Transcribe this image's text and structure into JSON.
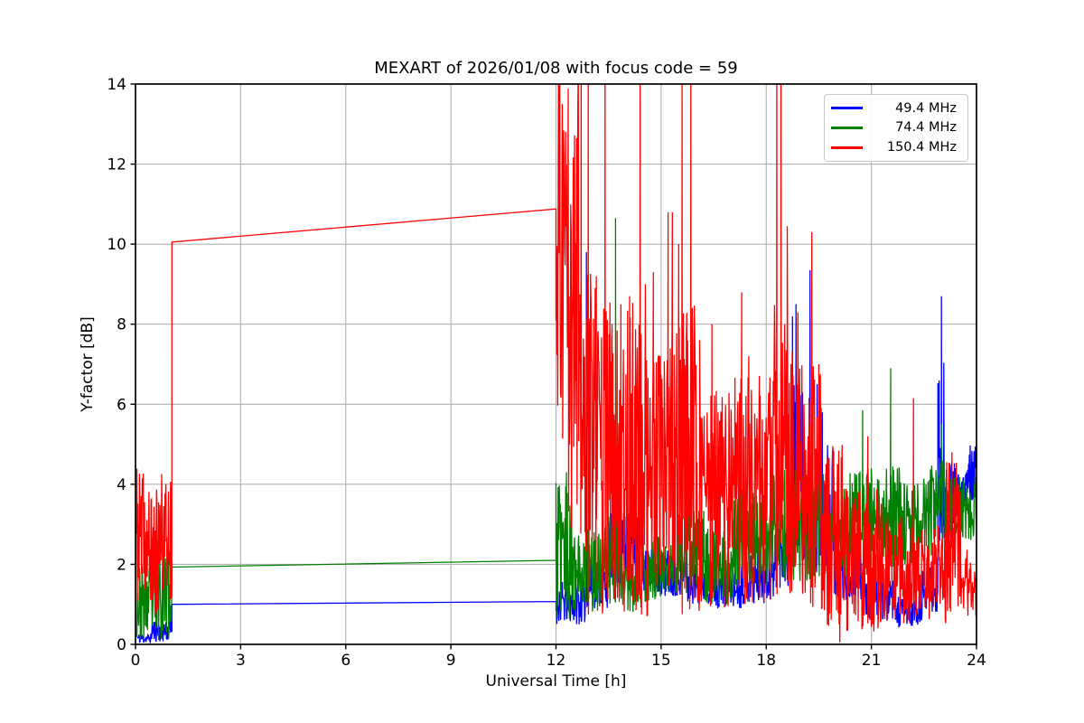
{
  "colors": {
    "background": "#ffffff",
    "grid": "#b0b0b0",
    "axes": "#000000"
  },
  "chart_data": {
    "type": "line",
    "title": "MEXART of 2026/01/08 with focus code = 59",
    "xlabel": "Universal Time [h]",
    "ylabel": "Y-factor [dB]",
    "xlim": [
      0,
      24
    ],
    "ylim": [
      0,
      14
    ],
    "xticks": [
      0,
      3,
      6,
      9,
      12,
      15,
      18,
      21,
      24
    ],
    "yticks": [
      0,
      2,
      4,
      6,
      8,
      10,
      12,
      14
    ],
    "grid": true,
    "legend_position": "upper right",
    "sample_step_hours": 0.012,
    "series": [
      {
        "name": "49.4 MHz",
        "color": "#0000ff",
        "seed": 11,
        "segments": [
          {
            "type": "noise",
            "x0": 0.05,
            "x1": 0.45,
            "lo": 0.02,
            "hi": 0.28
          },
          {
            "type": "noise",
            "x0": 0.45,
            "x1": 1.04,
            "lo": 0.05,
            "hi": 0.65
          },
          {
            "type": "line",
            "points": [
              [
                1.04,
                1.0
              ],
              [
                12.0,
                1.07
              ]
            ]
          },
          {
            "type": "noise",
            "x0": 12.0,
            "x1": 12.85,
            "lo": 0.5,
            "hi": 1.6
          },
          {
            "type": "noise",
            "x0": 12.85,
            "x1": 13.5,
            "lo": 0.9,
            "hi": 2.1
          },
          {
            "type": "noise",
            "x0": 13.5,
            "x1": 14.5,
            "lo": 1.4,
            "hi": 3.3
          },
          {
            "type": "noise",
            "x0": 14.5,
            "x1": 15.75,
            "lo": 1.2,
            "hi": 2.4
          },
          {
            "type": "noise",
            "x0": 15.75,
            "x1": 16.45,
            "lo": 1.0,
            "hi": 2.1
          },
          {
            "type": "noise",
            "x0": 16.45,
            "x1": 17.3,
            "lo": 0.9,
            "hi": 1.9
          },
          {
            "type": "noise",
            "x0": 17.3,
            "x1": 18.25,
            "lo": 1.0,
            "hi": 2.4
          },
          {
            "type": "noise",
            "x0": 18.25,
            "x1": 18.7,
            "lo": 1.4,
            "hi": 3.2
          },
          {
            "type": "noise",
            "x0": 18.7,
            "x1": 19.05,
            "lo": 2.0,
            "hi": 6.5,
            "p": 1.4
          },
          {
            "type": "noise",
            "x0": 19.05,
            "x1": 19.4,
            "lo": 2.0,
            "hi": 5.0,
            "p": 1.4
          },
          {
            "type": "noise",
            "x0": 19.4,
            "x1": 19.95,
            "lo": 1.8,
            "hi": 5.0,
            "p": 1.5
          },
          {
            "type": "noise",
            "x0": 19.95,
            "x1": 20.85,
            "lo": 1.1,
            "hi": 2.4
          },
          {
            "type": "noise",
            "x0": 20.85,
            "x1": 21.65,
            "lo": 0.6,
            "hi": 1.6
          },
          {
            "type": "noise",
            "x0": 21.65,
            "x1": 22.45,
            "lo": 0.35,
            "hi": 1.2
          },
          {
            "type": "noise",
            "x0": 22.45,
            "x1": 22.9,
            "lo": 0.8,
            "hi": 2.0
          },
          {
            "type": "noise",
            "x0": 22.9,
            "x1": 23.08,
            "lo": 2.0,
            "hi": 7.5,
            "p": 0.9
          },
          {
            "type": "noise",
            "x0": 23.08,
            "x1": 23.4,
            "lo": 2.6,
            "hi": 4.6
          },
          {
            "type": "noise",
            "x0": 23.4,
            "x1": 23.7,
            "lo": 3.0,
            "hi": 4.3
          },
          {
            "type": "noise",
            "x0": 23.7,
            "x1": 24.0,
            "lo": 3.6,
            "hi": 5.15
          }
        ],
        "spikes": [
          [
            12.87,
            9.8
          ],
          [
            18.75,
            8.2
          ],
          [
            18.85,
            8.5
          ],
          [
            19.25,
            9.35
          ],
          [
            19.45,
            6.5
          ],
          [
            19.6,
            5.8
          ],
          [
            23.0,
            8.7
          ]
        ]
      },
      {
        "name": "74.4 MHz",
        "color": "#008000",
        "seed": 23,
        "segments": [
          {
            "type": "noise",
            "x0": 0.03,
            "x1": 0.6,
            "lo": 0.05,
            "hi": 2.0
          },
          {
            "type": "noise",
            "x0": 0.6,
            "x1": 0.95,
            "lo": 0.1,
            "hi": 2.9
          },
          {
            "type": "noise",
            "x0": 0.95,
            "x1": 1.04,
            "lo": 0.1,
            "hi": 2.2
          },
          {
            "type": "line",
            "points": [
              [
                1.04,
                1.93
              ],
              [
                12.0,
                2.1
              ]
            ]
          },
          {
            "type": "noise",
            "x0": 12.0,
            "x1": 12.55,
            "lo": 0.6,
            "hi": 4.05
          },
          {
            "type": "noise",
            "x0": 12.55,
            "x1": 13.35,
            "lo": 0.8,
            "hi": 2.9
          },
          {
            "type": "noise",
            "x0": 13.35,
            "x1": 13.8,
            "lo": 1.0,
            "hi": 3.3
          },
          {
            "type": "noise",
            "x0": 13.8,
            "x1": 14.45,
            "lo": 0.8,
            "hi": 2.7
          },
          {
            "type": "noise",
            "x0": 14.45,
            "x1": 15.35,
            "lo": 1.0,
            "hi": 2.7
          },
          {
            "type": "noise",
            "x0": 15.35,
            "x1": 16.25,
            "lo": 1.2,
            "hi": 3.4
          },
          {
            "type": "noise",
            "x0": 16.25,
            "x1": 17.05,
            "lo": 1.0,
            "hi": 2.9
          },
          {
            "type": "noise",
            "x0": 17.05,
            "x1": 18.05,
            "lo": 1.4,
            "hi": 3.9
          },
          {
            "type": "noise",
            "x0": 18.05,
            "x1": 19.6,
            "lo": 1.5,
            "hi": 4.4
          },
          {
            "type": "noise",
            "x0": 19.6,
            "x1": 20.65,
            "lo": 1.5,
            "hi": 4.3
          },
          {
            "type": "noise",
            "x0": 20.65,
            "x1": 21.85,
            "lo": 1.9,
            "hi": 4.5
          },
          {
            "type": "noise",
            "x0": 21.85,
            "x1": 22.65,
            "lo": 2.0,
            "hi": 4.2
          },
          {
            "type": "noise",
            "x0": 22.65,
            "x1": 23.25,
            "lo": 2.2,
            "hi": 4.6
          },
          {
            "type": "noise",
            "x0": 23.25,
            "x1": 24.0,
            "lo": 2.6,
            "hi": 4.2
          }
        ],
        "spikes": [
          [
            12.3,
            4.3
          ],
          [
            13.7,
            10.65
          ],
          [
            18.35,
            4.7
          ],
          [
            20.75,
            5.85
          ],
          [
            21.55,
            6.9
          ],
          [
            23.0,
            5.5
          ]
        ]
      },
      {
        "name": "150.4 MHz",
        "color": "#ff0000",
        "seed": 37,
        "segments": [
          {
            "type": "noise",
            "x0": 0.03,
            "x1": 0.3,
            "lo": 1.0,
            "hi": 4.4
          },
          {
            "type": "noise",
            "x0": 0.3,
            "x1": 0.7,
            "lo": 0.7,
            "hi": 3.9
          },
          {
            "type": "noise",
            "x0": 0.7,
            "x1": 1.04,
            "lo": 1.1,
            "hi": 4.3
          },
          {
            "type": "line",
            "points": [
              [
                1.04,
                10.05
              ],
              [
                12.0,
                10.88
              ]
            ]
          },
          {
            "type": "noise",
            "x0": 12.0,
            "x1": 12.65,
            "lo": 1.8,
            "hi": 14.8,
            "p": 0.55
          },
          {
            "type": "noise",
            "x0": 12.65,
            "x1": 13.3,
            "lo": 0.6,
            "hi": 9.3,
            "p": 0.9
          },
          {
            "type": "noise",
            "x0": 13.3,
            "x1": 14.6,
            "lo": 0.7,
            "hi": 8.6,
            "p": 0.95
          },
          {
            "type": "noise",
            "x0": 14.6,
            "x1": 15.3,
            "lo": 0.5,
            "hi": 7.5,
            "p": 0.95
          },
          {
            "type": "noise",
            "x0": 15.3,
            "x1": 16.0,
            "lo": 0.5,
            "hi": 8.5,
            "p": 0.9
          },
          {
            "type": "noise",
            "x0": 16.0,
            "x1": 17.0,
            "lo": 0.8,
            "hi": 6.5
          },
          {
            "type": "noise",
            "x0": 17.0,
            "x1": 18.2,
            "lo": 1.0,
            "hi": 6.8
          },
          {
            "type": "noise",
            "x0": 18.2,
            "x1": 18.8,
            "lo": 1.0,
            "hi": 8.5,
            "p": 0.9
          },
          {
            "type": "noise",
            "x0": 18.8,
            "x1": 19.6,
            "lo": 0.8,
            "hi": 7.0
          },
          {
            "type": "noise",
            "x0": 19.6,
            "x1": 20.3,
            "lo": 0.4,
            "hi": 5.0
          },
          {
            "type": "noise",
            "x0": 20.3,
            "x1": 21.3,
            "lo": 0.3,
            "hi": 3.9
          },
          {
            "type": "noise",
            "x0": 21.3,
            "x1": 22.1,
            "lo": 0.5,
            "hi": 3.2
          },
          {
            "type": "noise",
            "x0": 22.1,
            "x1": 23.15,
            "lo": 0.5,
            "hi": 3.0
          },
          {
            "type": "noise",
            "x0": 23.15,
            "x1": 23.55,
            "lo": 0.8,
            "hi": 4.6
          },
          {
            "type": "noise",
            "x0": 23.55,
            "x1": 24.0,
            "lo": 0.7,
            "hi": 2.4
          }
        ],
        "spikes": [
          [
            12.72,
            14.7
          ],
          [
            12.92,
            14.7
          ],
          [
            13.15,
            9.2
          ],
          [
            13.4,
            14.7
          ],
          [
            13.6,
            8.0
          ],
          [
            13.85,
            8.5
          ],
          [
            14.1,
            8.7
          ],
          [
            14.4,
            14.7
          ],
          [
            14.55,
            9.0
          ],
          [
            14.78,
            9.3
          ],
          [
            15.2,
            10.8
          ],
          [
            15.32,
            10.8
          ],
          [
            15.5,
            10.0
          ],
          [
            15.6,
            14.7
          ],
          [
            15.85,
            14.7
          ],
          [
            16.1,
            7.6
          ],
          [
            16.45,
            8.0
          ],
          [
            17.3,
            8.8
          ],
          [
            17.5,
            7.2
          ],
          [
            18.3,
            14.7
          ],
          [
            18.42,
            14.7
          ],
          [
            18.6,
            10.45
          ],
          [
            18.9,
            8.3
          ],
          [
            19.3,
            10.3
          ],
          [
            19.5,
            7.0
          ],
          [
            20.1,
            0.05
          ],
          [
            20.9,
            5.2
          ],
          [
            22.2,
            6.15
          ],
          [
            23.3,
            4.8
          ]
        ]
      }
    ]
  }
}
